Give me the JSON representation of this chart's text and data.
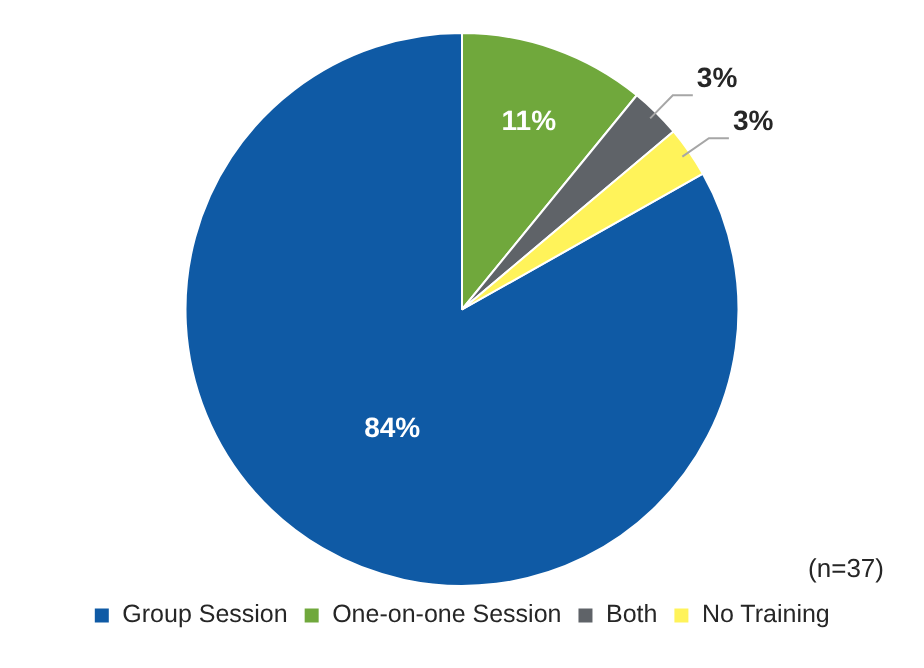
{
  "chart_data": {
    "type": "pie",
    "categories": [
      "Group Session",
      "One-on-one Session",
      "Both",
      "No Training"
    ],
    "values": [
      84,
      11,
      3,
      3
    ],
    "colors": [
      "#0f5aa5",
      "#70a83c",
      "#5f6368",
      "#fff35a"
    ],
    "value_labels": [
      "84%",
      "11%",
      "3%",
      "3%"
    ],
    "legend": "bottom",
    "annotations": [
      "(n=37)"
    ]
  }
}
